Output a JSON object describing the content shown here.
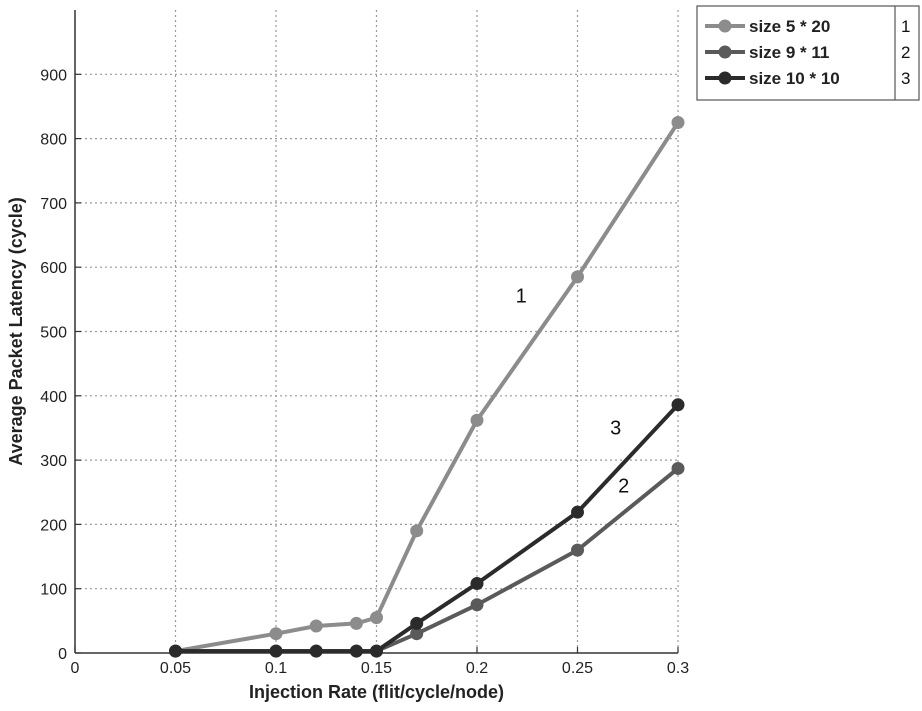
{
  "chart_data": {
    "type": "line",
    "title": "",
    "xlabel": "Injection Rate (flit/cycle/node)",
    "ylabel": "Average Packet Latency (cycle)",
    "xlim": [
      0,
      0.3
    ],
    "ylim": [
      0,
      1000
    ],
    "xticks": [
      0,
      0.05,
      0.1,
      0.15,
      0.2,
      0.25,
      0.3
    ],
    "xtick_labels": [
      "0",
      "0.05",
      "0.1",
      "0.15",
      "0.2",
      "0.25",
      "0.3"
    ],
    "yticks": [
      0,
      100,
      200,
      300,
      400,
      500,
      600,
      700,
      800,
      900
    ],
    "ytick_labels": [
      "0",
      "100",
      "200",
      "300",
      "400",
      "500",
      "600",
      "700",
      "800",
      "900"
    ],
    "grid": true,
    "legend_position": "outside-top-right",
    "series": [
      {
        "name": "size 5 * 20",
        "tag": "1",
        "color": "#8c8c8c",
        "x": [
          0.05,
          0.1,
          0.12,
          0.14,
          0.15,
          0.17,
          0.2,
          0.25,
          0.3
        ],
        "y": [
          3,
          30,
          42,
          46,
          55,
          190,
          362,
          585,
          825
        ]
      },
      {
        "name": "size 9 * 11",
        "tag": "2",
        "color": "#5a5a5a",
        "x": [
          0.05,
          0.1,
          0.12,
          0.14,
          0.15,
          0.17,
          0.2,
          0.25,
          0.3
        ],
        "y": [
          3,
          3,
          3,
          3,
          3,
          30,
          75,
          160,
          287
        ]
      },
      {
        "name": "size 10 * 10",
        "tag": "3",
        "color": "#2b2b2b",
        "x": [
          0.05,
          0.1,
          0.12,
          0.14,
          0.15,
          0.17,
          0.2,
          0.25,
          0.3
        ],
        "y": [
          3,
          3,
          3,
          3,
          3,
          46,
          108,
          219,
          386
        ]
      }
    ],
    "annotations": [
      {
        "text": "1",
        "x": 0.222,
        "y": 545
      },
      {
        "text": "3",
        "x": 0.269,
        "y": 340
      },
      {
        "text": "2",
        "x": 0.273,
        "y": 250
      }
    ]
  }
}
